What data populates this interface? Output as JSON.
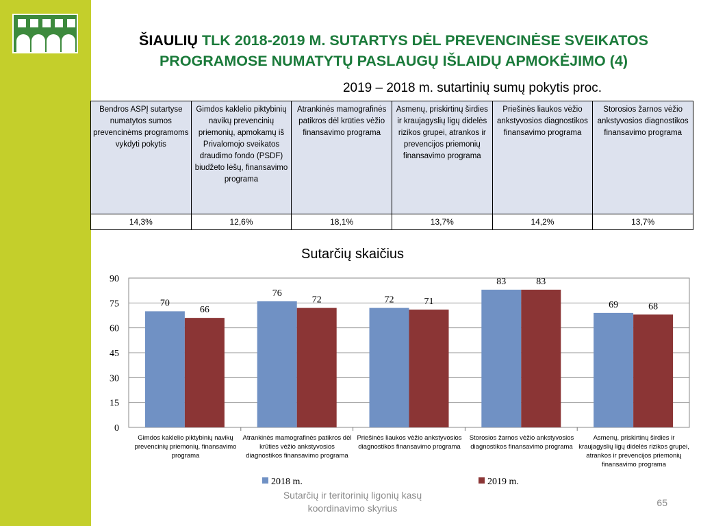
{
  "slide": {
    "title_city": "ŠIAULIŲ",
    "title_rest_line1": " TLK 2018-2019 M. SUTARTYS DĖL PREVENCINĖSE SVEIKATOS",
    "title_line2": "PROGRAMOSE NUMATYTŲ PASLAUGŲ IŠLAIDŲ APMOKĖJIMO (4)",
    "subtitle": "2019 – 2018 m. sutartinių sumų pokytis proc.",
    "footer": "Sutarčių ir teritorinių ligonių kasų koordinavimo skyrius",
    "page_number": "65",
    "colors": {
      "sidebar": "#c4cf2b",
      "title": "#1a7a3a",
      "series_2018": "#7091c4",
      "series_2019": "#8b3535"
    }
  },
  "table": {
    "headers": [
      "Bendros ASPĮ sutartyse numatytos sumos prevencinėms programoms vykdyti pokytis",
      "Gimdos kaklelio piktybinių navikų prevencinių priemonių, apmokamų iš Privalomojo sveikatos draudimo fondo (PSDF) biudžeto lėšų, finansavimo programa",
      "Atrankinės mamografinės patikros dėl krūties vėžio finansavimo programa",
      "Asmenų, priskirtinų širdies ir kraujagyslių ligų didelės rizikos grupei, atrankos ir prevencijos priemonių finansavimo programa",
      "Priešinės liaukos vėžio ankstyvosios diagnostikos finansavimo programa",
      "Storosios žarnos vėžio ankstyvosios diagnostikos finansavimo programa"
    ],
    "values": [
      "14,3%",
      "12,6%",
      "18,1%",
      "13,7%",
      "14,2%",
      "13,7%"
    ]
  },
  "chart_data": {
    "type": "bar",
    "title": "Sutarčių skaičius",
    "categories": [
      "Gimdos kaklelio piktybinių navikų prevencinių priemonių, finansavimo programa",
      "Atrankinės mamografinės patikros dėl krūties vėžio ankstyvosios diagnostikos finansavimo programa",
      "Priešinės liaukos vėžio ankstyvosios diagnostikos finansavimo  programa",
      "Storosios žarnos vėžio ankstyvosios diagnostikos finansavimo programa",
      "Asmenų, priskirtinų širdies ir kraujagyslių ligų didelės rizikos grupei, atrankos ir prevencijos priemonių finansavimo programa"
    ],
    "series": [
      {
        "name": "2018 m.",
        "values": [
          70,
          76,
          72,
          83,
          69
        ]
      },
      {
        "name": "2019 m.",
        "values": [
          66,
          72,
          71,
          83,
          68
        ]
      }
    ],
    "yticks": [
      "0",
      "15",
      "30",
      "45",
      "60",
      "75",
      "90"
    ],
    "ylim": [
      0,
      90
    ],
    "grid": true,
    "legend": "bottom"
  }
}
